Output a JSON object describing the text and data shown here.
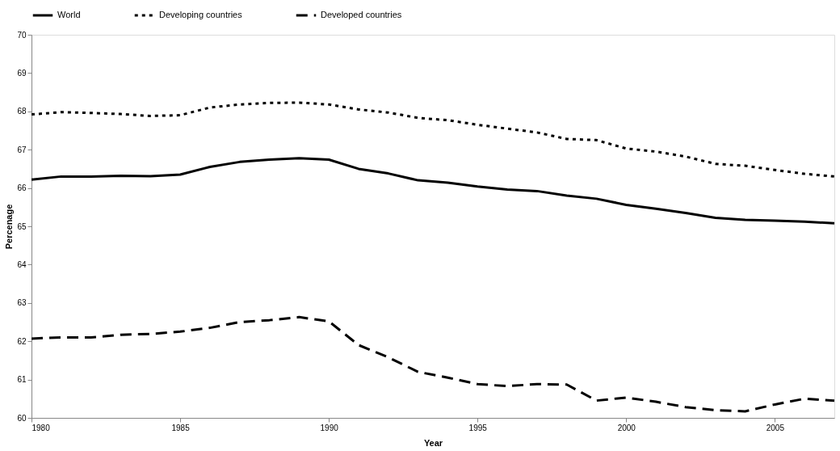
{
  "chart_data": {
    "type": "line",
    "xlabel": "Year",
    "ylabel": "Percenage",
    "x": [
      1980,
      1981,
      1982,
      1983,
      1984,
      1985,
      1986,
      1987,
      1988,
      1989,
      1990,
      1991,
      1992,
      1993,
      1994,
      1995,
      1996,
      1997,
      1998,
      1999,
      2000,
      2001,
      2002,
      2003,
      2004,
      2005,
      2006,
      2007
    ],
    "series": [
      {
        "name": "World",
        "color": "#000000",
        "line_style": "solid",
        "values": [
          66.22,
          66.3,
          66.3,
          66.32,
          66.31,
          66.35,
          66.55,
          66.68,
          66.74,
          66.78,
          66.74,
          66.5,
          66.38,
          66.2,
          66.14,
          66.04,
          65.96,
          65.92,
          65.8,
          65.72,
          65.56,
          65.46,
          65.35,
          65.22,
          65.17,
          65.15,
          65.12,
          65.08
        ]
      },
      {
        "name": "Developing countries",
        "color": "#000000",
        "line_style": "dotted",
        "values": [
          67.92,
          67.98,
          67.96,
          67.93,
          67.88,
          67.9,
          68.1,
          68.18,
          68.22,
          68.23,
          68.18,
          68.05,
          67.97,
          67.83,
          67.77,
          67.65,
          67.55,
          67.45,
          67.28,
          67.25,
          67.03,
          66.95,
          66.82,
          66.63,
          66.58,
          66.47,
          66.37,
          66.3
        ]
      },
      {
        "name": "Developed countries",
        "color": "#000000",
        "line_style": "dashed",
        "values": [
          62.07,
          62.1,
          62.1,
          62.17,
          62.19,
          62.25,
          62.35,
          62.5,
          62.55,
          62.63,
          62.52,
          61.9,
          61.58,
          61.2,
          61.05,
          60.88,
          60.83,
          60.88,
          60.87,
          60.45,
          60.53,
          60.42,
          60.28,
          60.2,
          60.17,
          60.35,
          60.5,
          60.45
        ]
      }
    ],
    "xlim": [
      1980,
      2007
    ],
    "xticks": [
      1980,
      1985,
      1990,
      1995,
      2000,
      2005
    ],
    "ylim": [
      60,
      70
    ],
    "yticks": [
      60,
      61,
      62,
      63,
      64,
      65,
      66,
      67,
      68,
      69,
      70
    ],
    "grid": false,
    "legend": "top",
    "marker": "none"
  }
}
